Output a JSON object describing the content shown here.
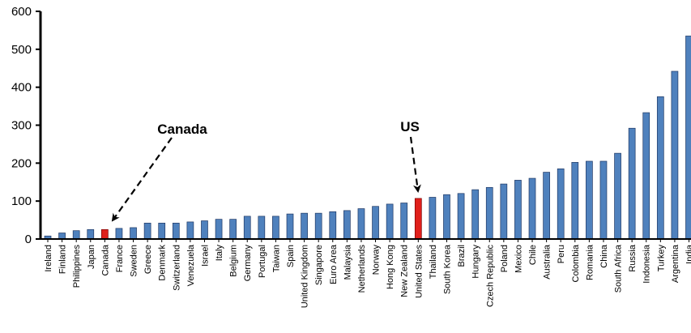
{
  "chart_data": {
    "type": "bar",
    "title": "",
    "xlabel": "",
    "ylabel": "",
    "ylim": [
      0,
      600
    ],
    "yticks": [
      0,
      100,
      200,
      300,
      400,
      500,
      600
    ],
    "grid": false,
    "legend": "none",
    "colors": {
      "default": "#4F81BD",
      "highlight": "#E0201B",
      "outline": "#1F3864"
    },
    "categories": [
      "Ireland",
      "Finland",
      "Philippines",
      "Japan",
      "Canada",
      "France",
      "Sweden",
      "Greece",
      "Denmark",
      "Switzerland",
      "Venezuela",
      "Israel",
      "Italy",
      "Belgium",
      "Germany",
      "Portugal",
      "Taiwan",
      "Spain",
      "United Kingdom",
      "Singapore",
      "Euro Area",
      "Malaysia",
      "Netherlands",
      "Norway",
      "Hong Kong",
      "New Zealand",
      "United States",
      "Thailand",
      "South Korea",
      "Brazil",
      "Hungary",
      "Czech Republic",
      "Poland",
      "Mexico",
      "Chile",
      "Australia",
      "Peru",
      "Colombia",
      "Romania",
      "China",
      "South Africa",
      "Russia",
      "Indonesia",
      "Turkey",
      "Argentina",
      "India"
    ],
    "values": [
      8,
      16,
      22,
      25,
      25,
      28,
      30,
      42,
      42,
      42,
      45,
      48,
      52,
      52,
      60,
      60,
      60,
      66,
      68,
      68,
      72,
      75,
      80,
      86,
      92,
      95,
      107,
      110,
      117,
      120,
      130,
      136,
      145,
      155,
      160,
      176,
      185,
      202,
      205,
      205,
      226,
      292,
      333,
      375,
      442,
      535
    ],
    "highlighted": [
      "Canada",
      "United States"
    ],
    "annotations": [
      {
        "text": "Canada",
        "target": "Canada"
      },
      {
        "text": "US",
        "target": "United States"
      }
    ]
  }
}
